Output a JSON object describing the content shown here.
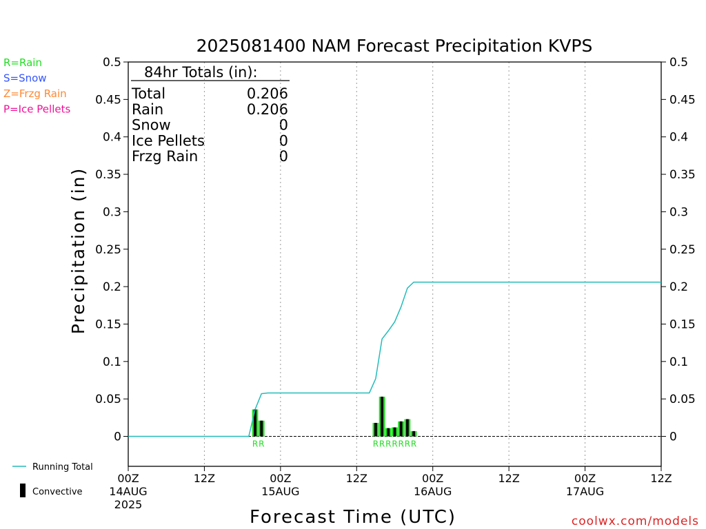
{
  "title": "2025081400 NAM Forecast Precipitation KVPS",
  "legend_types": [
    {
      "label": "R=Rain",
      "color": "#22dd22"
    },
    {
      "label": "S=Snow",
      "color": "#3355ff"
    },
    {
      "label": "Z=Frzg Rain",
      "color": "#ff8833"
    },
    {
      "label": "P=Ice Pellets",
      "color": "#ee1199"
    }
  ],
  "legend_series": {
    "running_total_label": "Running Total",
    "convective_label": "Convective"
  },
  "totals_box": {
    "header": "84hr Totals (in):",
    "rows": [
      {
        "label": "Total",
        "value": "0.206"
      },
      {
        "label": "Rain",
        "value": "0.206"
      },
      {
        "label": "Snow",
        "value": "0"
      },
      {
        "label": "Ice Pellets",
        "value": "0"
      },
      {
        "label": "Frzg Rain",
        "value": "0"
      }
    ]
  },
  "attribution": "coolwx.com/models",
  "colors": {
    "rain": "#22dd22",
    "running_total": "#22bbbb",
    "convective": "#000000",
    "gridline": "#999999",
    "text": "#000000"
  },
  "chart_data": {
    "type": "bar",
    "title": "2025081400 NAM Forecast Precipitation KVPS",
    "xlabel": "Forecast Time (UTC)",
    "ylabel": "Precipitation (in)",
    "xlim": [
      0,
      84
    ],
    "ylim": [
      -0.04,
      0.5
    ],
    "y_ticks": [
      "0",
      "0.05",
      "0.1",
      "0.15",
      "0.2",
      "0.25",
      "0.3",
      "0.35",
      "0.4",
      "0.45",
      "0.5"
    ],
    "x_ticks": [
      {
        "x": 0,
        "label": "00Z",
        "date": "14AUG",
        "year": "2025"
      },
      {
        "x": 12,
        "label": "12Z"
      },
      {
        "x": 24,
        "label": "00Z",
        "date": "15AUG"
      },
      {
        "x": 36,
        "label": "12Z"
      },
      {
        "x": 48,
        "label": "00Z",
        "date": "16AUG"
      },
      {
        "x": 60,
        "label": "12Z"
      },
      {
        "x": 72,
        "label": "00Z",
        "date": "17AUG"
      },
      {
        "x": 84,
        "label": "12Z"
      }
    ],
    "grid": "vertical dotted at 12-hour ticks",
    "precip_bars": [
      {
        "x": 20,
        "value": 0.036,
        "type": "R"
      },
      {
        "x": 21,
        "value": 0.021,
        "type": "R"
      },
      {
        "x": 39,
        "value": 0.018,
        "type": "R"
      },
      {
        "x": 40,
        "value": 0.053,
        "type": "R"
      },
      {
        "x": 41,
        "value": 0.011,
        "type": "R"
      },
      {
        "x": 42,
        "value": 0.012,
        "type": "R"
      },
      {
        "x": 43,
        "value": 0.02,
        "type": "R"
      },
      {
        "x": 44,
        "value": 0.023,
        "type": "R"
      },
      {
        "x": 45,
        "value": 0.007,
        "type": "R"
      }
    ],
    "running_total": {
      "x": [
        0,
        3,
        6,
        9,
        12,
        15,
        18,
        19,
        20,
        21,
        22,
        24,
        27,
        30,
        33,
        36,
        38,
        39,
        40,
        41,
        42,
        43,
        44,
        45,
        48,
        54,
        60,
        66,
        72,
        78,
        84
      ],
      "y": [
        0,
        0,
        0,
        0,
        0,
        0,
        0,
        0.0,
        0.036,
        0.057,
        0.058,
        0.058,
        0.058,
        0.058,
        0.058,
        0.058,
        0.058,
        0.077,
        0.13,
        0.141,
        0.153,
        0.173,
        0.198,
        0.206,
        0.206,
        0.206,
        0.206,
        0.206,
        0.206,
        0.206,
        0.206
      ]
    }
  }
}
